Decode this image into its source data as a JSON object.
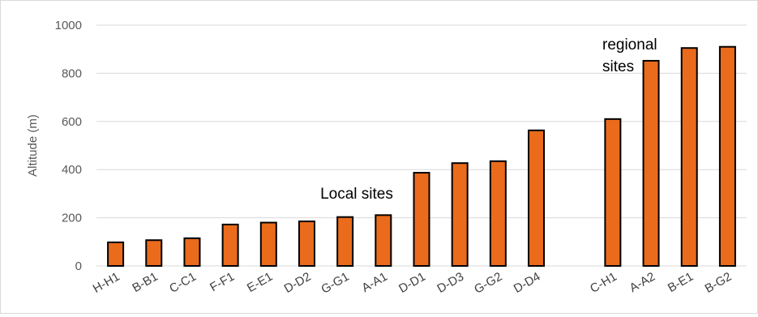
{
  "chart_data": {
    "type": "bar",
    "ylabel": "Altitude (m)",
    "ylim": [
      0,
      1000
    ],
    "yticks": [
      0,
      200,
      400,
      600,
      800,
      1000
    ],
    "grid": true,
    "colors": {
      "bar_fill": "#ea6b1c",
      "bar_stroke": "#000000",
      "grid": "#d9d9d9"
    },
    "categories": [
      "H-H1",
      "B-B1",
      "C-C1",
      "F-F1",
      "E-E1",
      "D-D2",
      "G-G1",
      "A-A1",
      "D-D1",
      "D-D3",
      "G-G2",
      "D-D4",
      "",
      "C-H1",
      "A-A2",
      "B-E1",
      "B-G2"
    ],
    "values": [
      98,
      107,
      115,
      172,
      180,
      185,
      203,
      211,
      387,
      427,
      435,
      563,
      null,
      610,
      852,
      905,
      910
    ],
    "annotations": [
      {
        "text": "Local sites",
        "lines": [
          "Local sites"
        ]
      },
      {
        "text": "regional sites",
        "lines": [
          "regional",
          "sites"
        ]
      }
    ]
  }
}
